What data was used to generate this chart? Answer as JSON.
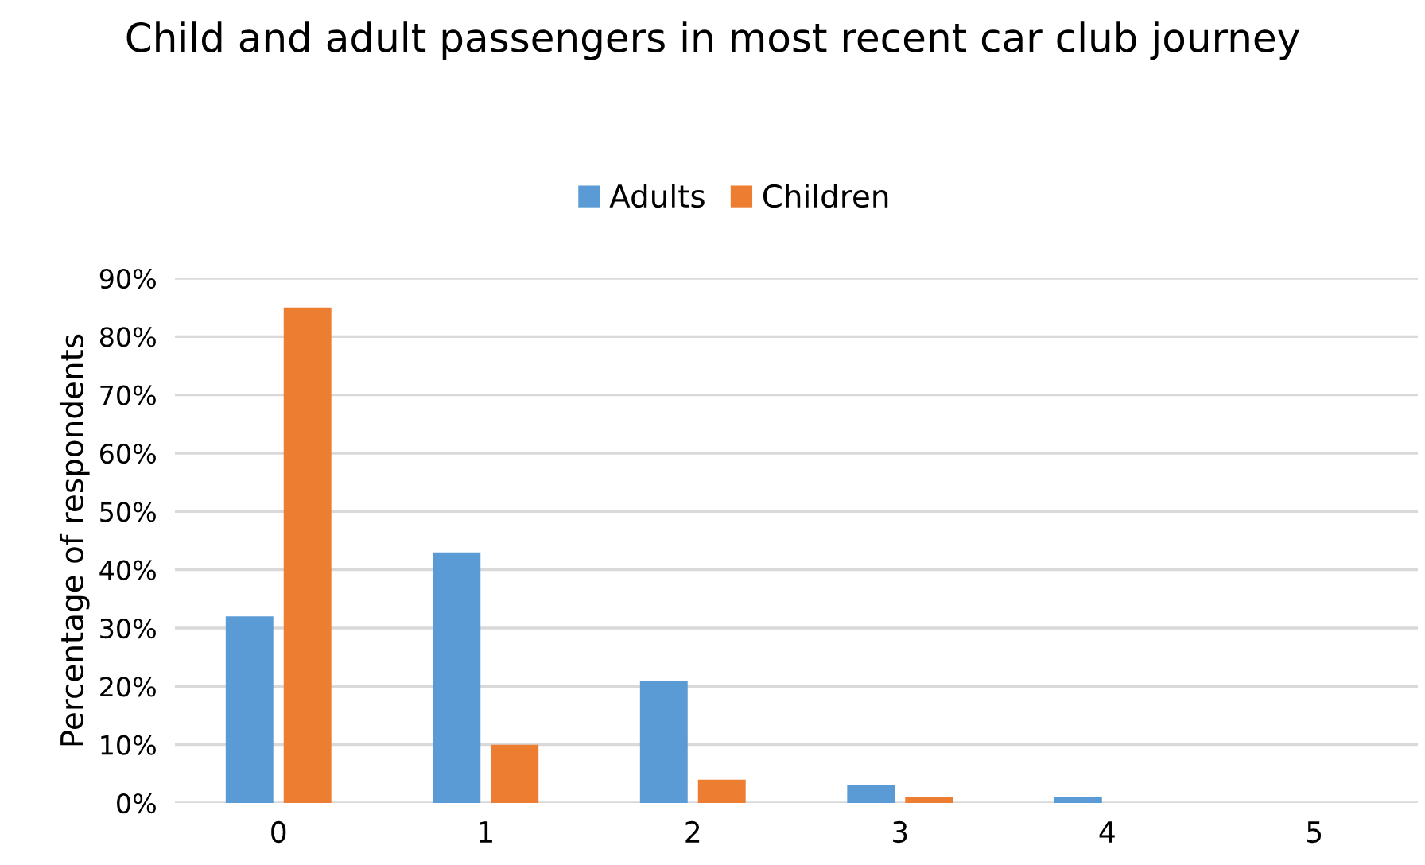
{
  "chart_data": {
    "type": "bar",
    "title": "Child and adult passengers in most recent car club journey",
    "ylabel": "Percentage of respondents",
    "categories": [
      "0",
      "1",
      "2",
      "3",
      "4",
      "5"
    ],
    "series": [
      {
        "name": "Adults",
        "color": "#5b9bd5",
        "values": [
          32,
          43,
          21,
          3,
          1,
          0
        ]
      },
      {
        "name": "Children",
        "color": "#ed7d31",
        "values": [
          85,
          10,
          4,
          1,
          0,
          0
        ]
      }
    ],
    "ylim": [
      0,
      90
    ],
    "yticks": [
      {
        "value": 0,
        "label": "0%"
      },
      {
        "value": 10,
        "label": "10%"
      },
      {
        "value": 20,
        "label": "20%"
      },
      {
        "value": 30,
        "label": "30%"
      },
      {
        "value": 40,
        "label": "40%"
      },
      {
        "value": 50,
        "label": "50%"
      },
      {
        "value": 60,
        "label": "60%"
      },
      {
        "value": 70,
        "label": "70%"
      },
      {
        "value": 80,
        "label": "80%"
      },
      {
        "value": 90,
        "label": "90%"
      }
    ],
    "grid": "y",
    "legend": "top"
  }
}
